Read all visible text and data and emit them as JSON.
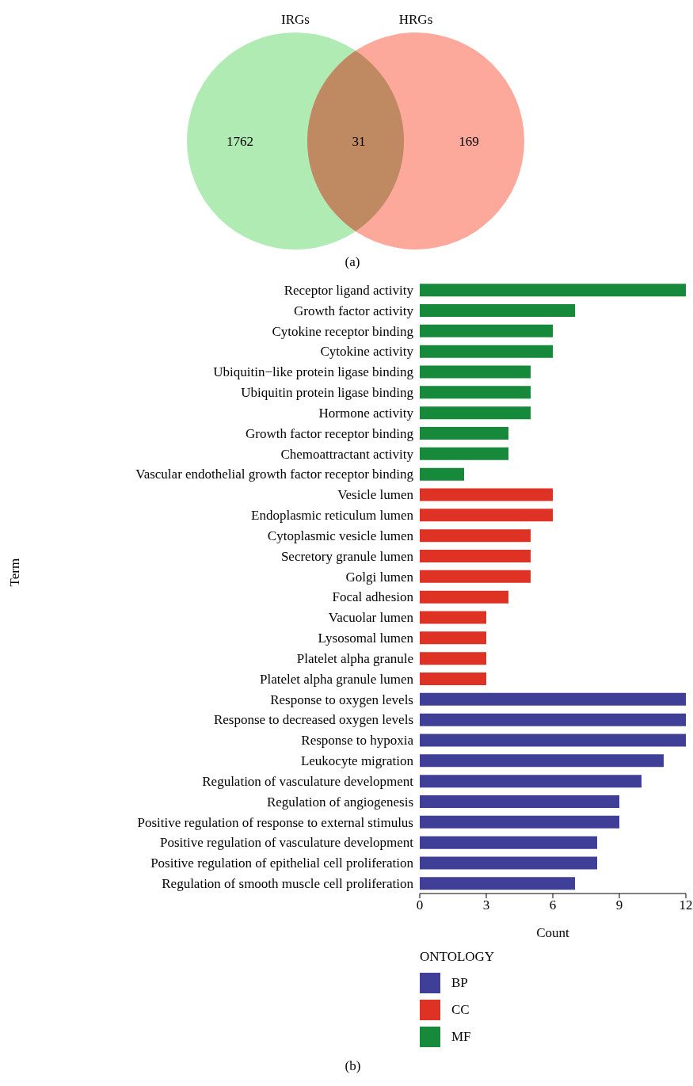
{
  "chart_data": [
    {
      "type": "other",
      "categories": [
        "IRGs",
        null,
        "HRGs"
      ],
      "colors": [
        "#b0ebb4",
        "#bf8a62",
        "#fca89a"
      ],
      "values": [
        1762,
        31,
        169
      ],
      "data_labels": true,
      "annotations": [
        "(a)"
      ]
    },
    {
      "type": "bar",
      "orientation": "horizontal",
      "stacked": true,
      "categories": [
        "Receptor ligand activity",
        "Growth factor activity",
        "Cytokine receptor binding",
        "Cytokine activity",
        "Ubiquitin−like protein ligase binding",
        "Ubiquitin protein ligase binding",
        "Hormone activity",
        "Growth factor receptor binding",
        "Chemoattractant activity",
        "Vascular endothelial growth factor receptor binding",
        "Vesicle lumen",
        "Endoplasmic reticulum lumen",
        "Cytoplasmic vesicle lumen",
        "Secretory granule lumen",
        "Golgi lumen",
        "Focal adhesion",
        "Vacuolar lumen",
        "Lysosomal lumen",
        "Platelet alpha granule",
        "Platelet alpha granule lumen",
        "Response to oxygen levels",
        "Response to decreased oxygen levels",
        "Response to hypoxia",
        "Leukocyte migration",
        "Regulation of vasculature development",
        "Regulation of angiogenesis",
        "Positive regulation of response to external stimulus",
        "Positive regulation of vasculature development",
        "Positive regulation of epithelial cell proliferation",
        "Regulation of smooth muscle cell proliferation"
      ],
      "series": [
        {
          "name": "BP",
          "color": "#3f3f97",
          "values": [
            null,
            null,
            null,
            null,
            null,
            null,
            null,
            null,
            null,
            null,
            null,
            null,
            null,
            null,
            null,
            null,
            null,
            null,
            null,
            null,
            12,
            12,
            12,
            11,
            10,
            9,
            9,
            8,
            8,
            7
          ]
        },
        {
          "name": "CC",
          "color": "#dd3224",
          "values": [
            null,
            null,
            null,
            null,
            null,
            null,
            null,
            null,
            null,
            null,
            6,
            6,
            5,
            5,
            5,
            4,
            3,
            3,
            3,
            3,
            null,
            null,
            null,
            null,
            null,
            null,
            null,
            null,
            null,
            null
          ]
        },
        {
          "name": "MF",
          "color": "#17893b",
          "values": [
            12,
            7,
            6,
            6,
            5,
            5,
            5,
            4,
            4,
            2,
            null,
            null,
            null,
            null,
            null,
            null,
            null,
            null,
            null,
            null,
            null,
            null,
            null,
            null,
            null,
            null,
            null,
            null,
            null,
            null
          ]
        }
      ],
      "xlim": [
        0,
        12
      ],
      "xticks": [
        0,
        3,
        6,
        9,
        12
      ],
      "xlabel": "Count",
      "ylabel": "Term",
      "legend_title": "ONTOLOGY",
      "legend": "bottom",
      "annotations": [
        "(b)"
      ]
    }
  ]
}
